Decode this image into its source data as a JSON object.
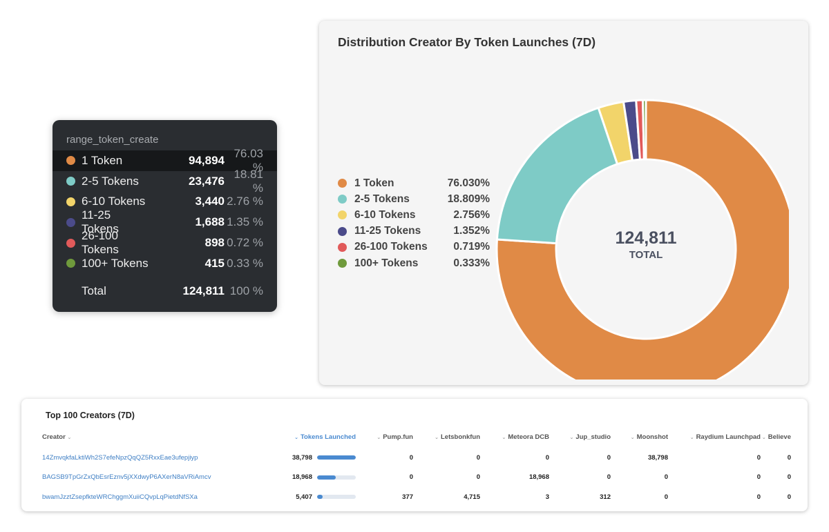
{
  "tooltip": {
    "header": "range_token_create",
    "rows": [
      {
        "label": "1 Token",
        "count": "94,894",
        "pct": "76.03 %",
        "color": "#e08a46"
      },
      {
        "label": "2-5 Tokens",
        "count": "23,476",
        "pct": "18.81 %",
        "color": "#7ecbc6"
      },
      {
        "label": "6-10 Tokens",
        "count": "3,440",
        "pct": "2.76 %",
        "color": "#f2d46a"
      },
      {
        "label": "11-25 Tokens",
        "count": "1,688",
        "pct": "1.35 %",
        "color": "#4b4b8a"
      },
      {
        "label": "26-100 Tokens",
        "count": "898",
        "pct": "0.72 %",
        "color": "#e15a5a"
      },
      {
        "label": "100+ Tokens",
        "count": "415",
        "pct": "0.33 %",
        "color": "#6f9a3c"
      }
    ],
    "total": {
      "label": "Total",
      "count": "124,811",
      "pct": "100 %"
    }
  },
  "chart_data": {
    "type": "pie",
    "title": "Distribution Creator By Token Launches (7D)",
    "categories": [
      "1 Token",
      "2-5 Tokens",
      "6-10 Tokens",
      "11-25 Tokens",
      "26-100 Tokens",
      "100+ Tokens"
    ],
    "values": [
      76.03,
      18.809,
      2.756,
      1.352,
      0.719,
      0.333
    ],
    "value_labels": [
      "76.030%",
      "18.809%",
      "2.756%",
      "1.352%",
      "0.719%",
      "0.333%"
    ],
    "colors": [
      "#e08a46",
      "#7ecbc6",
      "#f2d46a",
      "#4b4b8a",
      "#e15a5a",
      "#6f9a3c"
    ],
    "center_value": "124,811",
    "center_label": "TOTAL",
    "legend_position": "left"
  },
  "table": {
    "title": "Top 100 Creators (7D)",
    "columns": [
      "Creator",
      "Tokens Launched",
      "Pump.fun",
      "Letsbonkfun",
      "Meteora DCB",
      "Jup_studio",
      "Moonshot",
      "Raydium Launchpad",
      "Believe"
    ],
    "rows": [
      {
        "creator": "14ZmvqkfaLktiWh2S7efeNpzQqQZ5RxxEae3ufepjiyp",
        "tokens": "38,798",
        "bar": 1.0,
        "pump": "0",
        "bonk": "0",
        "meteora": "0",
        "jup": "0",
        "moonshot": "38,798",
        "raydium": "0",
        "believe": "0"
      },
      {
        "creator": "BAGSB9TpGrZxQbEsrEznv5jXXdwyP6AXerN8aVRiAmcv",
        "tokens": "18,968",
        "bar": 0.489,
        "pump": "0",
        "bonk": "0",
        "meteora": "18,968",
        "jup": "0",
        "moonshot": "0",
        "raydium": "0",
        "believe": "0"
      },
      {
        "creator": "bwamJzztZsepfkteWRChggmXuiiCQvpLqPietdNfSXa",
        "tokens": "5,407",
        "bar": 0.139,
        "pump": "377",
        "bonk": "4,715",
        "meteora": "3",
        "jup": "312",
        "moonshot": "0",
        "raydium": "0",
        "believe": "0"
      }
    ]
  }
}
